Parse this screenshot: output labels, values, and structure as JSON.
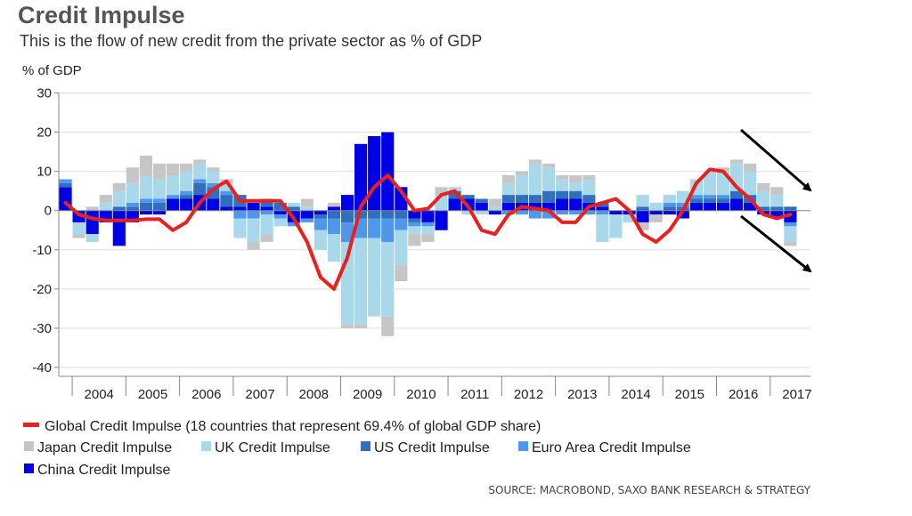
{
  "chart_data": {
    "type": "bar",
    "stacked": true,
    "title": "Credit Impulse",
    "subtitle": "This is the flow of new credit from the private sector as % of GDP",
    "ylabel": "% of GDP",
    "ylim": [
      -40,
      30
    ],
    "yticks": [
      30,
      20,
      10,
      0,
      -10,
      -20,
      -30,
      -40
    ],
    "xlim": [
      2003.75,
      2017.75
    ],
    "year_labels": [
      "2004",
      "2005",
      "2006",
      "2007",
      "2008",
      "2009",
      "2010",
      "2011",
      "2012",
      "2013",
      "2014",
      "2015",
      "2016",
      "2017"
    ],
    "x": [
      2003.875,
      2004.125,
      2004.375,
      2004.625,
      2004.875,
      2005.125,
      2005.375,
      2005.625,
      2005.875,
      2006.125,
      2006.375,
      2006.625,
      2006.875,
      2007.125,
      2007.375,
      2007.625,
      2007.875,
      2008.125,
      2008.375,
      2008.625,
      2008.875,
      2009.125,
      2009.375,
      2009.625,
      2009.875,
      2010.125,
      2010.375,
      2010.625,
      2010.875,
      2011.125,
      2011.375,
      2011.625,
      2011.875,
      2012.125,
      2012.375,
      2012.625,
      2012.875,
      2013.125,
      2013.375,
      2013.625,
      2013.875,
      2014.125,
      2014.375,
      2014.625,
      2014.875,
      2015.125,
      2015.375,
      2015.625,
      2015.875,
      2016.125,
      2016.375,
      2016.625,
      2016.875,
      2017.125,
      2017.375
    ],
    "series": [
      {
        "name": "China Credit Impulse",
        "color": "#0000e6",
        "values": [
          6,
          -3,
          -6,
          -3,
          -9,
          -3,
          -1,
          -1,
          3,
          3,
          4,
          3,
          1,
          1,
          2,
          1,
          -1,
          -3,
          -2,
          -1,
          1,
          4,
          17,
          19,
          20,
          6,
          -2,
          -3,
          -5,
          3,
          3,
          2,
          -1,
          2,
          2,
          2,
          2,
          3,
          3,
          2,
          1,
          -1,
          -1,
          -3,
          -1,
          -1,
          -2,
          2,
          2,
          2,
          3,
          2,
          -1,
          -2,
          -3
        ]
      },
      {
        "name": "US Credit Impulse",
        "color": "#2f6fbd",
        "values": [
          1,
          0,
          0,
          0,
          1,
          1,
          2,
          2,
          0,
          1,
          3,
          3,
          3,
          3,
          0,
          2,
          2,
          1,
          0,
          -1,
          -2,
          -3,
          -2,
          -2,
          -2,
          -2,
          -1,
          0,
          0,
          2,
          1,
          1,
          0,
          2,
          2,
          2,
          3,
          2,
          2,
          2,
          1,
          0,
          0,
          1,
          0,
          1,
          1,
          1,
          1,
          1,
          2,
          2,
          1,
          1,
          1
        ]
      },
      {
        "name": "Euro Area Credit Impulse",
        "color": "#4f97ea",
        "values": [
          1,
          0,
          0,
          0,
          0,
          1,
          1,
          1,
          1,
          1,
          1,
          1,
          1,
          -2,
          -2,
          -1,
          -1,
          -1,
          -1,
          -3,
          -4,
          -5,
          -5,
          -5,
          -6,
          -3,
          -1,
          -1,
          0,
          0,
          0,
          0,
          0,
          -1,
          -1,
          -2,
          -2,
          -1,
          -1,
          -1,
          -1,
          0,
          0,
          0,
          0,
          1,
          1,
          1,
          1,
          1,
          0,
          0,
          0,
          0,
          -1
        ]
      },
      {
        "name": "UK Credit Impulse",
        "color": "#a8d8ea",
        "values": [
          0,
          -3,
          -2,
          2,
          4,
          5,
          6,
          5,
          5,
          5,
          4,
          3,
          2,
          -5,
          -6,
          -5,
          -2,
          1,
          1,
          -5,
          -7,
          -21,
          -22,
          -20,
          -19,
          -9,
          -2,
          -2,
          4,
          1,
          -1,
          -1,
          1,
          3,
          5,
          8,
          6,
          3,
          2,
          4,
          -7,
          -6,
          -2,
          3,
          2,
          2,
          3,
          4,
          6,
          6,
          7,
          6,
          4,
          3,
          -4
        ]
      },
      {
        "name": "Japan Credit Impulse",
        "color": "#c6c6c6",
        "values": [
          0,
          -1,
          1,
          2,
          2,
          4,
          5,
          4,
          3,
          2,
          1,
          1,
          1,
          0,
          -2,
          -2,
          0,
          0,
          2,
          0,
          1,
          -1,
          -1,
          0,
          -5,
          -4,
          -3,
          -2,
          2,
          0,
          0,
          0,
          2,
          2,
          1,
          1,
          1,
          1,
          2,
          1,
          0,
          0,
          0,
          -2,
          -2,
          0,
          0,
          0,
          0,
          1,
          1,
          2,
          2,
          2,
          -1
        ]
      },
      {
        "name": "Global Credit Impulse (18 countries that represent 69.4% of global GDP share)",
        "color": "#e8211f",
        "type": "line",
        "values": [
          2,
          -1,
          -2,
          -2.5,
          -2.5,
          -2.5,
          -2.2,
          -2.2,
          -5,
          -3,
          2,
          5.5,
          7.5,
          2.5,
          2.5,
          2.5,
          2.5,
          -2,
          -8,
          -17,
          -20,
          -12,
          1,
          6,
          9,
          5,
          0,
          0.5,
          4,
          5,
          1,
          -5,
          -6,
          -1,
          1,
          0.5,
          0,
          -3,
          -3,
          1,
          2,
          3,
          0,
          -6,
          -8,
          -5,
          0,
          7,
          10.5,
          10,
          6,
          3,
          -1,
          -2,
          -1
        ]
      }
    ],
    "legend": {
      "global": "Global Credit Impulse (18 countries that represent 69.4% of global GDP share)",
      "japan": "Japan Credit Impulse",
      "uk": "UK Credit Impulse",
      "us": "US Credit Impulse",
      "euro": "Euro Area Credit Impulse",
      "china": "China Credit Impulse"
    },
    "annotations": [
      "arrow-downtrend-upper",
      "arrow-downtrend-lower"
    ],
    "source": "SOURCE: MACROBOND, SAXO BANK RESEARCH & STRATEGY"
  }
}
